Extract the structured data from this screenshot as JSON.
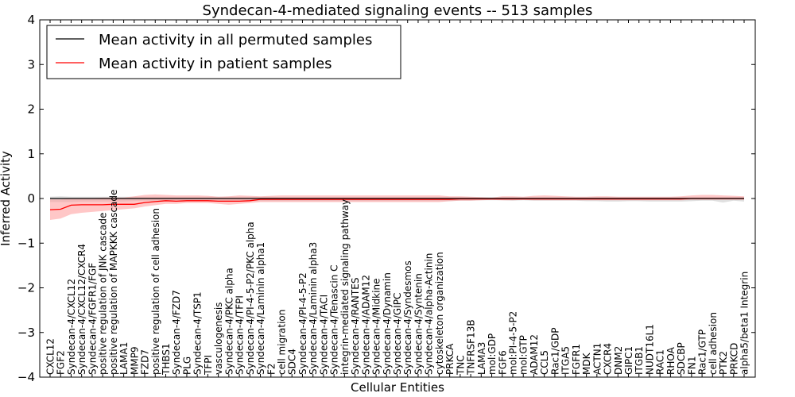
{
  "chart_data": {
    "type": "line",
    "title": "Syndecan-4-mediated signaling events -- 513 samples",
    "xlabel": "Cellular Entities",
    "ylabel": "Inferred Activity",
    "ylim": [
      -4,
      4
    ],
    "yticks": [
      4,
      3,
      2,
      1,
      0,
      -1,
      -2,
      -3,
      -4
    ],
    "ytick_labels": [
      "4",
      "3",
      "2",
      "1",
      "0",
      "−1",
      "−2",
      "−3",
      "−4"
    ],
    "legend_position": "top-left",
    "categories": [
      "CXCL12",
      "FGF2",
      "Syndecan-4/CXCL12",
      "Syndecan-4/CXCL12/CXCR4",
      "Syndecan-4/FGFR1/FGF",
      "positive regulation of JNK cascade",
      "positive regulation of MAPKKK cascade",
      "LAMA1",
      "MMP9",
      "FZD7",
      "positive regulation of cell adhesion",
      "THBS1",
      "Syndecan-4/FZD7",
      "PLG",
      "Syndecan-4/TSP1",
      "TFPI",
      "vasculogenesis",
      "Syndecan-4/PKC alpha",
      "Syndecan-4/TFPI",
      "Syndecan-4/PI-4-5-P2/PKC alpha",
      "Syndecan-4/Laminin alpha1",
      "F2",
      "cell migration",
      "SDC4",
      "Syndecan-4/PI-4-5-P2",
      "Syndecan-4/Laminin alpha3",
      "Syndecan-4/TACI",
      "Syndecan-4/Tenascin C",
      "integrin-mediated signaling pathway",
      "Syndecan-4/RANTES",
      "Syndecan-4/ADAM12",
      "Syndecan-4/Midkine",
      "Syndecan-4/Dynamin",
      "Syndecan-4/GIPC",
      "Syndecan-4/Syndesmos",
      "Syndecan-4/Syntenin",
      "Syndecan-4/alpha-Actinin",
      "cytoskeleton organization",
      "PRKCA",
      "TNC",
      "TNFRSF13B",
      "LAMA3",
      "mol:GDP",
      "FGF6",
      "mol:PI-4-5-P2",
      "mol:GTP",
      "ADAM12",
      "CCL5",
      "Rac1/GDP",
      "ITGA5",
      "FGFR1",
      "MDK",
      "ACTN1",
      "CXCR4",
      "DNM2",
      "GIPC1",
      "ITGB1",
      "NUDT16L1",
      "RAC1",
      "RHOA",
      "SDCBP",
      "FN1",
      "Rac1/GTP",
      "cell adhesion",
      "PTK2",
      "PRKCD",
      "alpha5/beta1 Integrin"
    ],
    "series": [
      {
        "name": "Mean activity in all permuted samples",
        "color": "#000000",
        "band_color": "#bbbbbb",
        "values": [
          0,
          0,
          0,
          0,
          0,
          0,
          0,
          0,
          0,
          0,
          0,
          0,
          0,
          0,
          0,
          0,
          0,
          0,
          0,
          0,
          0,
          0,
          0,
          0,
          0,
          0,
          0,
          0,
          0,
          0,
          0,
          0,
          0,
          0,
          0,
          0,
          0,
          0,
          0,
          0,
          0,
          0,
          0,
          0,
          0,
          0,
          0,
          0,
          0,
          0,
          0,
          0,
          0,
          0,
          0,
          0,
          0,
          0,
          0,
          0,
          0,
          0,
          0,
          0,
          0,
          0,
          0
        ],
        "band_lower": [
          -0.08,
          -0.08,
          -0.08,
          -0.07,
          -0.07,
          -0.07,
          -0.07,
          -0.07,
          -0.06,
          -0.05,
          -0.06,
          -0.05,
          -0.06,
          -0.06,
          -0.06,
          -0.06,
          -0.06,
          -0.06,
          -0.06,
          -0.06,
          -0.06,
          -0.06,
          -0.06,
          -0.06,
          -0.06,
          -0.06,
          -0.06,
          -0.06,
          -0.06,
          -0.06,
          -0.06,
          -0.06,
          -0.06,
          -0.06,
          -0.06,
          -0.06,
          -0.06,
          -0.06,
          -0.06,
          -0.05,
          -0.05,
          -0.04,
          -0.04,
          -0.04,
          -0.05,
          -0.04,
          -0.05,
          -0.05,
          -0.05,
          -0.05,
          -0.05,
          -0.06,
          -0.06,
          -0.07,
          -0.07,
          -0.06,
          -0.06,
          -0.07,
          -0.07,
          -0.07,
          -0.07,
          -0.06,
          -0.05,
          -0.05,
          -0.09,
          -0.05,
          -0.07
        ],
        "band_upper": [
          0.04,
          0.05,
          0.04,
          0.04,
          0.04,
          0.04,
          0.04,
          0.04,
          0.04,
          0.04,
          0.04,
          0.04,
          0.04,
          0.04,
          0.04,
          0.04,
          0.04,
          0.04,
          0.04,
          0.04,
          0.04,
          0.04,
          0.03,
          0.03,
          0.03,
          0.03,
          0.03,
          0.03,
          0.03,
          0.03,
          0.03,
          0.03,
          0.03,
          0.03,
          0.03,
          0.03,
          0.03,
          0.03,
          0.03,
          0.03,
          0.03,
          0.03,
          0.03,
          0.03,
          0.03,
          0.03,
          0.03,
          0.03,
          0.03,
          0.03,
          0.03,
          0.03,
          0.03,
          0.03,
          0.03,
          0.03,
          0.03,
          0.03,
          0.03,
          0.03,
          0.03,
          0.03,
          0.03,
          0.03,
          0.03,
          0.03,
          0.03
        ]
      },
      {
        "name": "Mean activity in patient samples",
        "color": "#ff0000",
        "band_color": "#ff9999",
        "values": [
          -0.25,
          -0.24,
          -0.15,
          -0.14,
          -0.14,
          -0.14,
          -0.13,
          -0.13,
          -0.13,
          -0.09,
          -0.07,
          -0.05,
          -0.06,
          -0.05,
          -0.05,
          -0.05,
          -0.06,
          -0.06,
          -0.06,
          -0.05,
          -0.02,
          -0.02,
          -0.02,
          -0.02,
          -0.02,
          -0.02,
          -0.02,
          -0.02,
          -0.02,
          -0.02,
          -0.02,
          -0.02,
          -0.02,
          -0.02,
          -0.02,
          -0.02,
          -0.02,
          -0.02,
          -0.02,
          -0.01,
          -0.01,
          -0.01,
          -0.01,
          -0.01,
          -0.01,
          -0.01,
          -0.01,
          -0.01,
          -0.01,
          -0.01,
          -0.01,
          -0.01,
          -0.01,
          -0.01,
          -0.01,
          -0.01,
          -0.01,
          -0.01,
          -0.01,
          -0.01,
          -0.01,
          0.0,
          0.0,
          0.0,
          0.0,
          0.0,
          0.0
        ],
        "band_lower": [
          -0.48,
          -0.45,
          -0.35,
          -0.32,
          -0.3,
          -0.28,
          -0.26,
          -0.24,
          -0.22,
          -0.18,
          -0.15,
          -0.12,
          -0.12,
          -0.1,
          -0.1,
          -0.1,
          -0.12,
          -0.14,
          -0.12,
          -0.1,
          -0.08,
          -0.08,
          -0.08,
          -0.08,
          -0.08,
          -0.08,
          -0.08,
          -0.08,
          -0.08,
          -0.08,
          -0.08,
          -0.08,
          -0.08,
          -0.08,
          -0.08,
          -0.08,
          -0.08,
          -0.08,
          -0.06,
          -0.05,
          -0.05,
          -0.04,
          -0.03,
          -0.04,
          -0.04,
          -0.03,
          -0.04,
          -0.04,
          -0.04,
          -0.04,
          -0.04,
          -0.04,
          -0.04,
          -0.04,
          -0.04,
          -0.04,
          -0.04,
          -0.04,
          -0.04,
          -0.04,
          -0.04,
          -0.03,
          -0.03,
          -0.03,
          -0.03,
          -0.03,
          -0.03
        ],
        "band_upper": [
          -0.02,
          -0.02,
          0.0,
          0.01,
          0.01,
          0.02,
          0.02,
          0.02,
          0.05,
          0.08,
          0.09,
          0.08,
          0.07,
          0.07,
          0.07,
          0.06,
          0.04,
          0.05,
          0.07,
          0.06,
          0.05,
          0.06,
          0.07,
          0.07,
          0.07,
          0.07,
          0.07,
          0.07,
          0.07,
          0.07,
          0.07,
          0.07,
          0.07,
          0.07,
          0.07,
          0.07,
          0.07,
          0.07,
          0.05,
          0.05,
          0.04,
          0.03,
          0.02,
          0.05,
          0.05,
          0.04,
          0.06,
          0.07,
          0.06,
          0.05,
          0.04,
          0.04,
          0.05,
          0.05,
          0.04,
          0.04,
          0.04,
          0.04,
          0.04,
          0.04,
          0.05,
          0.07,
          0.08,
          0.08,
          0.07,
          0.06,
          0.05
        ]
      }
    ]
  }
}
